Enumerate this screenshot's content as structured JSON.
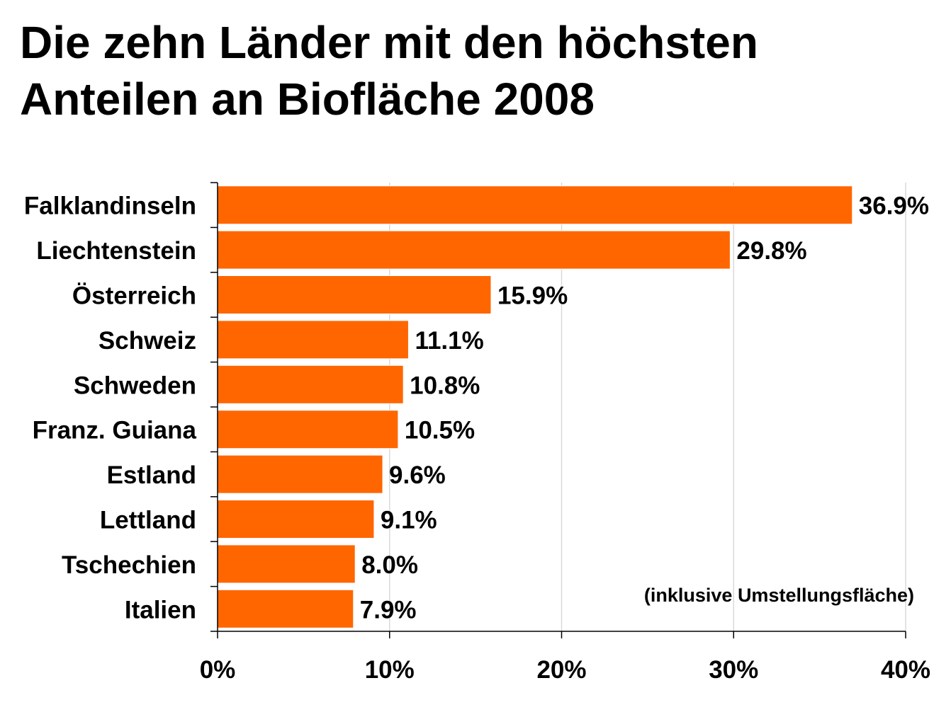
{
  "title_lines": [
    "Die zehn Länder mit den höchsten",
    "Anteilen an Biofläche 2008"
  ],
  "note": "(inklusive Umstellungsfläche)",
  "colors": {
    "bar": "#ff6600",
    "grid": "#d9d9d9",
    "axis": "#000000"
  },
  "chart_data": {
    "type": "bar",
    "orientation": "horizontal",
    "title": "Die zehn Länder mit den höchsten Anteilen an Biofläche 2008",
    "categories": [
      "Falklandinseln",
      "Liechtenstein",
      "Österreich",
      "Schweiz",
      "Schweden",
      "Franz. Guiana",
      "Estland",
      "Lettland",
      "Tschechien",
      "Italien"
    ],
    "values": [
      36.9,
      29.8,
      15.9,
      11.1,
      10.8,
      10.5,
      9.6,
      9.1,
      8.0,
      7.9
    ],
    "value_labels": [
      "36.9%",
      "29.8%",
      "15.9%",
      "11.1%",
      "10.8%",
      "10.5%",
      "9.6%",
      "9.1%",
      "8.0%",
      "7.9%"
    ],
    "xlim": [
      0,
      40
    ],
    "x_ticks": [
      0,
      10,
      20,
      30,
      40
    ],
    "x_tick_labels": [
      "0%",
      "10%",
      "20%",
      "30%",
      "40%"
    ],
    "xlabel": "",
    "ylabel": "",
    "grid": true,
    "annotation": "(inklusive Umstellungsfläche)"
  }
}
